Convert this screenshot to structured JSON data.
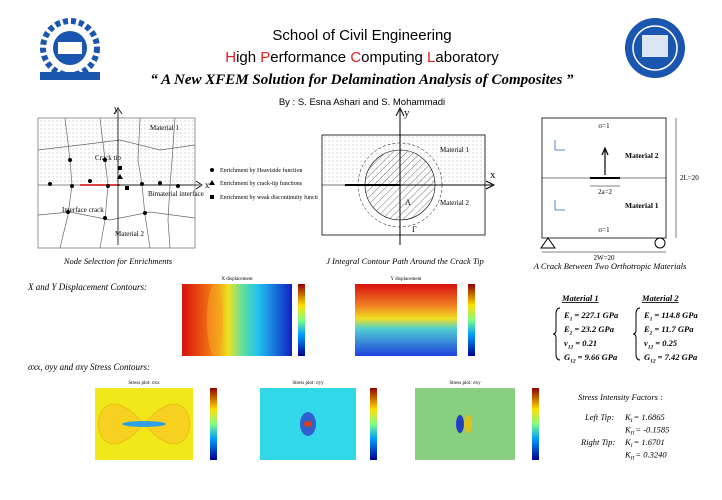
{
  "header": {
    "school": "School of Civil Engineering",
    "lab": [
      "H",
      "igh ",
      "P",
      "erformance ",
      "C",
      "omputing ",
      "L",
      "aboratory"
    ],
    "title": "“ A New XFEM Solution for Delamination Analysis of Composites ”",
    "authors": "By : S. Esna Ashari and S. Mohammadi"
  },
  "figure1": {
    "y": "y",
    "x": "x",
    "material1": "Material 1",
    "crack_tip": "Crack tip",
    "interface": "Bimaterial interface",
    "interface_crack": "Interface crack",
    "material2": "Material 2",
    "legend": [
      "Enrichment by Heaviside function",
      "Enrichment by crack-tip functions",
      "Enrichment by weak discontinuity functi"
    ],
    "caption": "Node Selection for Enrichments"
  },
  "figure2": {
    "y": "y",
    "x": "x",
    "material1": "Material 1",
    "material2": "Material 2",
    "area": "A",
    "contour": "Γ",
    "caption": "J Integral Contour Path Around the Crack Tip"
  },
  "figure3": {
    "stress_top": "σ=1",
    "material2": "Material 2",
    "material1": "Material 1",
    "crack": "2a=2",
    "height": "2L=20",
    "width": "2W=20",
    "stress_bottom": "σ=1",
    "caption": "A Crack Between Two Orthotropic Materials"
  },
  "displacement": {
    "heading": "X and Y Displacement Contours:",
    "plots": [
      "X displacement",
      "Y displacement"
    ]
  },
  "stress": {
    "heading": "σxx, σyy and σxy Stress Contours:",
    "plots": [
      "Stress plot: σxx",
      "Stress plot: σyy",
      "Stress plot: σxy"
    ]
  },
  "materials": [
    {
      "name": "Material 1",
      "properties": [
        {
          "symbol": "E",
          "sub": "1",
          "value": "= 227.1 GPa"
        },
        {
          "symbol": "E",
          "sub": "2",
          "value": "= 23.2 GPa"
        },
        {
          "symbol": "ν",
          "sub": "12",
          "value": "= 0.21"
        },
        {
          "symbol": "G",
          "sub": "12",
          "value": "= 9.66 GPa"
        }
      ]
    },
    {
      "name": "Material 2",
      "properties": [
        {
          "symbol": "E",
          "sub": "1",
          "value": "= 114.8 GPa"
        },
        {
          "symbol": "E",
          "sub": "2",
          "value": "= 11.7 GPa"
        },
        {
          "symbol": "ν",
          "sub": "12",
          "value": "= 0.25"
        },
        {
          "symbol": "G",
          "sub": "12",
          "value": "= 7.42 GPa"
        }
      ]
    }
  ],
  "sif": {
    "heading": "Stress Intensity Factors :",
    "lines": [
      {
        "label": "Left Tip:",
        "k": "K",
        "sub": "I",
        "value": "= 1.6865"
      },
      {
        "k": "K",
        "sub": "II",
        "value": "= -0.1585"
      },
      {
        "label": "Right Tip:",
        "k": "K",
        "sub": "I",
        "value": "= 1.6701"
      },
      {
        "k": "K",
        "sub": "II",
        "value": "= 0.3240"
      }
    ]
  }
}
